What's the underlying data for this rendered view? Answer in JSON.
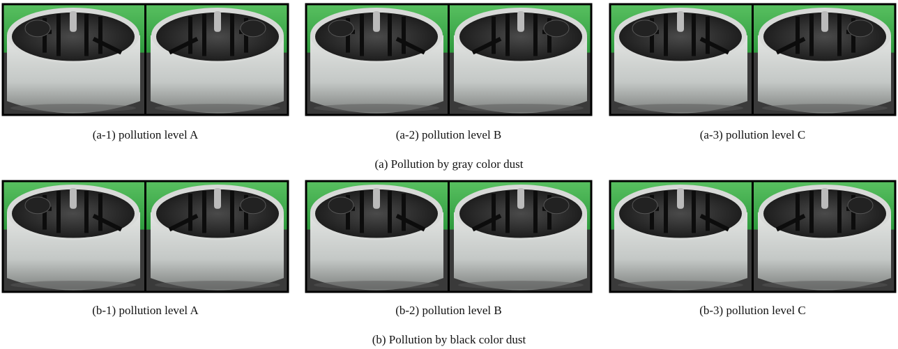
{
  "figure": {
    "groups": [
      {
        "caption": "(a) Pollution by gray color dust",
        "panels": [
          {
            "caption": "(a-1) pollution level A"
          },
          {
            "caption": "(a-2) pollution level B"
          },
          {
            "caption": "(a-3) pollution level C"
          }
        ]
      },
      {
        "caption": "(b) Pollution by black color dust",
        "panels": [
          {
            "caption": "(b-1) pollution level A"
          },
          {
            "caption": "(b-2) pollution level B"
          },
          {
            "caption": "(b-3) pollution level C"
          }
        ]
      }
    ]
  }
}
